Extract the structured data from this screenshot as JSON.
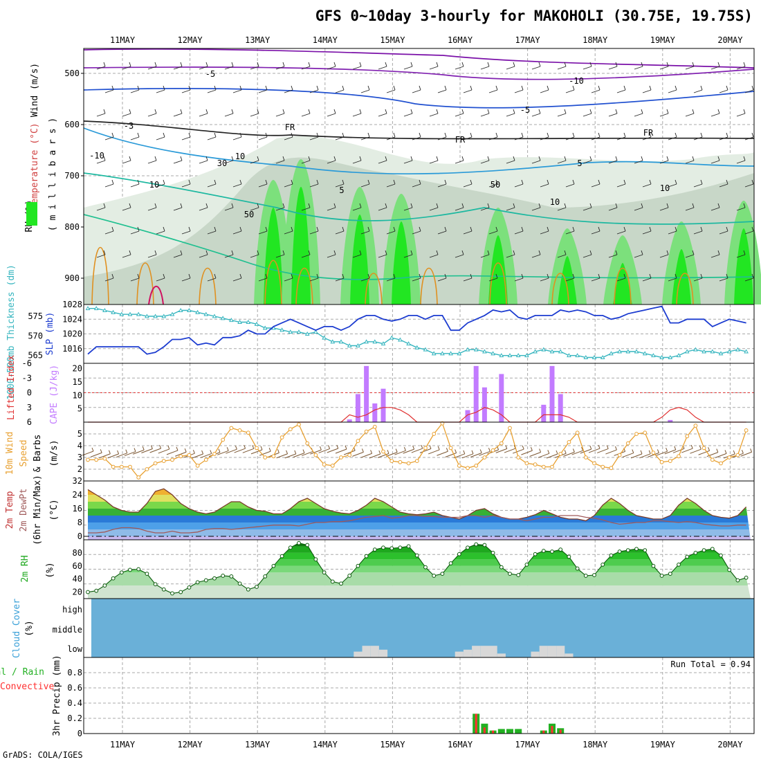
{
  "title": "GFS 0~10day 3-hourly for MAKOHOLI (30.75E, 19.75S)",
  "footer": "GrADS: COLA/IGES",
  "colors": {
    "grid": "#a8a8a8",
    "rh_light": "#e3ede3",
    "rh_mid": "#c4d4c4",
    "rh_green1": "#7ce07c",
    "rh_green2": "#22e622",
    "rh_green3": "#11b011",
    "slp": "#1c3cd0",
    "thickness": "#35b5bf",
    "cape": "#c27bff",
    "lifted_index": "#e03030",
    "wind_speed": "#e8a030",
    "barb": "#7a5530",
    "temp_fill_top": "#f0b030",
    "dewpoint": "#a05a5a",
    "rh2m": "#1ea81e",
    "cloud": "#6ab0d8",
    "cloud_low": "#d8d8d8",
    "precip_total": "#22b022",
    "precip_conv": "#ff3030"
  },
  "x_axis": {
    "labels": [
      "11MAY",
      "12MAY",
      "13MAY",
      "14MAY",
      "15MAY",
      "16MAY",
      "17MAY",
      "18MAY",
      "19MAY",
      "20MAY"
    ]
  },
  "panels": {
    "upper": {
      "ylabel_wind": "Wind (m/s)",
      "ylabel_temp": "Temperature (°C)",
      "ylabel_rh": "RH (%)",
      "ylabel_units": "( m i l l i b a r s )",
      "y_ticks": [
        "500",
        "600",
        "700",
        "800",
        "900"
      ],
      "contour_labels": [
        "-5",
        "-10",
        "-5",
        "-3",
        "FR",
        "FR",
        "FR",
        "5",
        "5",
        "10",
        "-10",
        "30",
        "10",
        "50",
        "50",
        "10",
        "10"
      ]
    },
    "slp": {
      "ylabel_thk": "1000-500mb Thickness (dm)",
      "ylabel_slp": "SLP (mb)",
      "thk_ticks": [
        "575",
        "570",
        "565"
      ],
      "slp_ticks": [
        "1028",
        "1024",
        "1020",
        "1016"
      ]
    },
    "cape": {
      "ylabel_li": "Lifted Index",
      "ylabel_cape": "CAPE (J/kg)",
      "li_ticks": [
        "-6",
        "-3",
        "0",
        "3",
        "6"
      ],
      "cape_ticks": [
        "20",
        "15",
        "10",
        "5"
      ]
    },
    "wind10": {
      "ylabel_a": "10m Wind",
      "ylabel_b": "Speed",
      "ylabel_c": "& Barbs",
      "ylabel_units": "(m/s)",
      "ticks": [
        "5",
        "4",
        "3",
        "2"
      ]
    },
    "temp2m": {
      "ylabel_a": "2m Temp",
      "ylabel_b": "2m DewPt",
      "ylabel_c": "(6hr Min/Max)",
      "ylabel_units": "(°C)",
      "ticks": [
        "32",
        "24",
        "16",
        "8",
        "0"
      ]
    },
    "rh2m": {
      "ylabel": "2m RH",
      "ylabel_units": "(%)",
      "ticks": [
        "80",
        "60",
        "40",
        "20"
      ]
    },
    "cloud": {
      "ylabel": "Cloud Cover",
      "ylabel_units": "(%)",
      "levels": [
        "high",
        "middle",
        "low"
      ]
    },
    "precip": {
      "ylabel_a": "Total / Rain",
      "ylabel_b": "Convective",
      "ylabel_c": "3hr Precip (mm)",
      "ticks": [
        "0.8",
        "0.6",
        "0.4",
        "0.2",
        "0"
      ],
      "run_total": "Run Total = 0.94"
    }
  },
  "chart_data": {
    "type": "line",
    "time_start": "10MAY 12Z",
    "time_step_hours": 3,
    "slp_mb": {
      "ylim": [
        1012,
        1028
      ],
      "values": [
        1014.5,
        1016.5,
        1016.5,
        1016.5,
        1016.5,
        1016.5,
        1016.5,
        1014.5,
        1015,
        1016.5,
        1018.5,
        1018.5,
        1019,
        1017,
        1017.5,
        1017,
        1019,
        1019,
        1019.5,
        1021,
        1020,
        1020,
        1022,
        1023,
        1024,
        1023,
        1022,
        1021,
        1022,
        1022,
        1021,
        1022,
        1024,
        1025,
        1025,
        1024,
        1023.5,
        1024,
        1025,
        1025,
        1024,
        1025,
        1025,
        1021,
        1021,
        1023,
        1024,
        1025,
        1026.5,
        1026,
        1026.5,
        1024.5,
        1024,
        1025,
        1025,
        1025,
        1026.5,
        1026,
        1026.5,
        1026,
        1025,
        1025,
        1024,
        1024.5,
        1025.5,
        1026,
        1026.5,
        1027,
        1027.5,
        1023,
        1023,
        1024,
        1024,
        1024,
        1022,
        1023,
        1024,
        1023.5,
        1023,
        1022.5,
        1022,
        1019.5,
        1020.5,
        1022,
        1024,
        1025,
        1024,
        1024.5,
        1024,
        1021,
        1019,
        1019,
        1021,
        1023,
        1025,
        1025,
        1025,
        1025.5,
        1026
      ]
    },
    "thickness_dm": {
      "ylim": [
        563,
        578
      ],
      "values": [
        577,
        577,
        576.5,
        576,
        575.5,
        575.5,
        575.5,
        575,
        575,
        575,
        575.5,
        576.5,
        576.5,
        576,
        575.5,
        575,
        574.5,
        574,
        573.5,
        573.5,
        573,
        572,
        572,
        571.5,
        571,
        571,
        570.5,
        571,
        569.5,
        568.5,
        568.5,
        567.5,
        567.5,
        568.5,
        568.5,
        568,
        569.5,
        569,
        568,
        567,
        566.5,
        565.5,
        565.5,
        565.5,
        565.5,
        566.5,
        566.5,
        566,
        565.5,
        565,
        565,
        565,
        565,
        566,
        566.5,
        566,
        566,
        565,
        565,
        564.5,
        564.5,
        564.5,
        565.5,
        566,
        566,
        566,
        565.5,
        565,
        564.5,
        564.5,
        565,
        566,
        566.5,
        566,
        566,
        565.5,
        566,
        566.5,
        566,
        566,
        566.5,
        566.5,
        566,
        565,
        565,
        565.5,
        566,
        566.5,
        567,
        566.5,
        566,
        565.5,
        565.5,
        566,
        567.5,
        567,
        566.5,
        566,
        565,
        565,
        565,
        565
      ]
    },
    "cape_jkg": {
      "ylim": [
        0,
        22
      ],
      "values": [
        0,
        0,
        0,
        0,
        0,
        0,
        0,
        0,
        0,
        0,
        0,
        0,
        0,
        0,
        0,
        0,
        0,
        0,
        0,
        0,
        0,
        0,
        0,
        0,
        0,
        0,
        0,
        0,
        0,
        0,
        0,
        1,
        10.5,
        21,
        7,
        12.5,
        0,
        0,
        0,
        0,
        0,
        0,
        0,
        0,
        0,
        4.5,
        21,
        13,
        0,
        18,
        0,
        0,
        0,
        0,
        6.5,
        21,
        10.5,
        0,
        0,
        0,
        0,
        0,
        0,
        0,
        0,
        0,
        0,
        0,
        0,
        0.8,
        0,
        0,
        0,
        0,
        0,
        0,
        0,
        0,
        0,
        0,
        0,
        0,
        0,
        0,
        0,
        0,
        0,
        0,
        0,
        0,
        0,
        0,
        0,
        0,
        0,
        0,
        0,
        0,
        0,
        0,
        8
      ]
    },
    "lifted_index": {
      "ylim": [
        6,
        -6
      ],
      "values": [
        6,
        6,
        6,
        6,
        6,
        6,
        6,
        6,
        6,
        6,
        6,
        6,
        6,
        6,
        6,
        6,
        6,
        6,
        6,
        6,
        6,
        6,
        6,
        6,
        6,
        6,
        6,
        6,
        6,
        6,
        6,
        4.5,
        5,
        4.5,
        3.5,
        3,
        3,
        3.5,
        4.5,
        6,
        6,
        6,
        6,
        6,
        6,
        4.5,
        4,
        3,
        3.5,
        4.5,
        6,
        6,
        6,
        6,
        4.5,
        4.5,
        4.5,
        5,
        6,
        6,
        6,
        6,
        6,
        6,
        6,
        6,
        6,
        6,
        5,
        3.5,
        3,
        3.5,
        5,
        6,
        6,
        6,
        6,
        6,
        6,
        6,
        6,
        6,
        6,
        6,
        5,
        4.5,
        4.5,
        5,
        6,
        6,
        6,
        6,
        6,
        6,
        6,
        6,
        6,
        6,
        6,
        6,
        6,
        6,
        6,
        6,
        6,
        6,
        6,
        6,
        6,
        4.5,
        4.5,
        4.5,
        6,
        6,
        6,
        6,
        6,
        6,
        6,
        6,
        6,
        6,
        6,
        6,
        6,
        6,
        6,
        4
      ]
    },
    "wind_speed_10m": {
      "ylim": [
        1,
        6
      ],
      "values": [
        2.8,
        2.8,
        2.9,
        2.2,
        2.2,
        2.2,
        1.3,
        2,
        2.5,
        2.7,
        2.8,
        3.1,
        3.2,
        2.3,
        2.8,
        3.3,
        4.5,
        5.5,
        5.3,
        5.1,
        3.8,
        3,
        3.1,
        4.7,
        5.4,
        5.8,
        4.2,
        3.2,
        2.4,
        2.3,
        3,
        3.2,
        4.4,
        5.2,
        5.6,
        3.5,
        2.7,
        2.6,
        2.5,
        2.7,
        3.8,
        5,
        5.9,
        3.8,
        2.3,
        2.1,
        2.3,
        3,
        3.6,
        4.2,
        5.5,
        3,
        2.5,
        2.4,
        2.2,
        2.2,
        3.3,
        4.3,
        5.1,
        3,
        2.5,
        2.2,
        2.1,
        3.2,
        4.2,
        5,
        5.1,
        3.4,
        2.6,
        2.7,
        3.1,
        4.8,
        5.7,
        3.8,
        2.8,
        2.5,
        3,
        3.2,
        5.3,
        5.6,
        4.1,
        3.6,
        3,
        3.2,
        4.2,
        5.6,
        3.2,
        3.3,
        3.3,
        3,
        2.9,
        3.5,
        4.9
      ]
    },
    "temp_2m_c": {
      "ylim": [
        -2,
        32
      ],
      "values": [
        27,
        24,
        21,
        17,
        15,
        14,
        14,
        19,
        26,
        27.5,
        24,
        19,
        16,
        14,
        13,
        14,
        17,
        20,
        20,
        17,
        15,
        14.5,
        13,
        13,
        16,
        20,
        22,
        19,
        16,
        14.5,
        13.5,
        13,
        15,
        18,
        22,
        20,
        17,
        14,
        13,
        12.5,
        13,
        14,
        12,
        11,
        10,
        12,
        15,
        16,
        13,
        11,
        10,
        10,
        11,
        12.5,
        15,
        13,
        11,
        10,
        10,
        9,
        12,
        18,
        22,
        19,
        15,
        12,
        11,
        10,
        10,
        12,
        18,
        22,
        19,
        15,
        12,
        11,
        10.5,
        12,
        17,
        21,
        18,
        14,
        12,
        11,
        10,
        13,
        18,
        21,
        18,
        13,
        11,
        10,
        10.5,
        13,
        17,
        21,
        18,
        14,
        12,
        11,
        10.5,
        10,
        12
      ]
    },
    "dewpoint_2m_c": {
      "ylim": [
        -2,
        32
      ],
      "values": [
        2,
        2,
        2.5,
        4,
        5,
        5,
        4.5,
        3,
        2,
        2,
        3,
        2,
        2,
        2.5,
        4,
        4.5,
        4.5,
        4,
        4.5,
        5,
        5.5,
        6,
        6.5,
        6.5,
        6.5,
        6,
        7,
        8,
        8,
        8.5,
        8.5,
        9,
        10,
        11,
        11.5,
        12,
        10.5,
        11,
        12,
        12,
        11.5,
        11.5,
        11,
        11,
        11,
        12,
        12,
        11,
        12,
        11,
        10,
        10,
        9,
        10,
        11,
        11,
        12,
        12,
        12,
        11,
        10.5,
        9.5,
        8,
        7,
        7.5,
        8,
        8,
        9,
        9,
        8.5,
        8,
        8.5,
        8,
        7,
        6.5,
        6,
        6,
        6.5,
        6.5,
        6,
        6.5,
        8,
        6,
        2.5,
        0,
        1,
        2.5,
        4,
        6,
        6.5,
        7.5,
        8.5,
        9,
        9,
        9.5,
        10,
        10.5,
        10.5,
        11,
        11.5,
        11,
        10,
        11.5
      ]
    },
    "rh_2m": {
      "ylim": [
        10,
        100
      ],
      "values": [
        20,
        22,
        30,
        41,
        50,
        54,
        55,
        48,
        32,
        24,
        18,
        20,
        27,
        35,
        38,
        41,
        45,
        44,
        33,
        24,
        28,
        44,
        60,
        75,
        88,
        95,
        92,
        70,
        50,
        36,
        33,
        45,
        60,
        75,
        85,
        88,
        87,
        88,
        90,
        76,
        58,
        45,
        48,
        64,
        78,
        88,
        93,
        92,
        80,
        58,
        48,
        46,
        62,
        78,
        83,
        82,
        85,
        74,
        56,
        45,
        46,
        62,
        76,
        82,
        84,
        86,
        84,
        60,
        45,
        48,
        62,
        74,
        80,
        84,
        86,
        76,
        54,
        38,
        42,
        60,
        75,
        84,
        88,
        80,
        55,
        30,
        20,
        18,
        28,
        45,
        60,
        70,
        76,
        78,
        84,
        88,
        72,
        46,
        40,
        56,
        70,
        80,
        88,
        84
      ]
    },
    "cloud_cover_low": {
      "ylim": [
        0,
        100
      ],
      "values": [
        0,
        0,
        0,
        0,
        0,
        0,
        0,
        0,
        0,
        0,
        0,
        0,
        0,
        0,
        0,
        0,
        0,
        0,
        0,
        0,
        0,
        0,
        0,
        0,
        0,
        0,
        0,
        0,
        0,
        0,
        0,
        0,
        30,
        60,
        60,
        40,
        0,
        0,
        0,
        0,
        0,
        0,
        0,
        0,
        30,
        40,
        60,
        60,
        60,
        20,
        0,
        0,
        0,
        30,
        60,
        60,
        60,
        20,
        0,
        0,
        0,
        0,
        0,
        0,
        0,
        0,
        0,
        0,
        0,
        0,
        0,
        0,
        0,
        0,
        0,
        0,
        0,
        0,
        0,
        0,
        0,
        0,
        0,
        0,
        0,
        0,
        0,
        0,
        0,
        0,
        0,
        0,
        0,
        0,
        0,
        0,
        0,
        0,
        0,
        0,
        0,
        0,
        0,
        0,
        0,
        0,
        0,
        0,
        0,
        0,
        0,
        0,
        0,
        0,
        0,
        0,
        0,
        60
      ]
    },
    "precip_total_mm": {
      "ylim": [
        0,
        1
      ],
      "values": [
        0,
        0,
        0,
        0,
        0,
        0,
        0,
        0,
        0,
        0,
        0,
        0,
        0,
        0,
        0,
        0,
        0,
        0,
        0,
        0,
        0,
        0,
        0,
        0,
        0,
        0,
        0,
        0,
        0,
        0,
        0,
        0,
        0,
        0,
        0,
        0,
        0,
        0,
        0,
        0,
        0,
        0,
        0,
        0,
        0,
        0,
        0.26,
        0.13,
        0.04,
        0.06,
        0.06,
        0.06,
        0,
        0,
        0.04,
        0.13,
        0.07,
        0,
        0,
        0,
        0,
        0,
        0,
        0,
        0,
        0,
        0,
        0,
        0,
        0,
        0,
        0,
        0,
        0,
        0,
        0,
        0,
        0,
        0,
        0,
        0,
        0,
        0,
        0,
        0,
        0,
        0,
        0,
        0,
        0,
        0,
        0,
        0,
        0,
        0,
        0,
        0,
        0,
        0,
        0,
        0,
        0,
        0,
        0,
        0,
        0,
        0,
        0,
        0,
        0,
        0,
        0,
        0,
        0,
        0,
        0.06
      ]
    },
    "precip_convective_mm": {
      "ylim": [
        0,
        1
      ],
      "values": [
        0,
        0,
        0,
        0,
        0,
        0,
        0,
        0,
        0,
        0,
        0,
        0,
        0,
        0,
        0,
        0,
        0,
        0,
        0,
        0,
        0,
        0,
        0,
        0,
        0,
        0,
        0,
        0,
        0,
        0,
        0,
        0,
        0,
        0,
        0,
        0,
        0,
        0,
        0,
        0,
        0,
        0,
        0,
        0,
        0,
        0,
        0.26,
        0.08,
        0.04,
        0,
        0,
        0,
        0,
        0,
        0.04,
        0.1,
        0.05,
        0,
        0,
        0,
        0,
        0,
        0,
        0,
        0,
        0,
        0,
        0,
        0,
        0,
        0,
        0,
        0,
        0,
        0,
        0,
        0,
        0,
        0,
        0,
        0,
        0,
        0,
        0,
        0,
        0,
        0,
        0,
        0,
        0,
        0,
        0,
        0,
        0,
        0,
        0,
        0,
        0,
        0,
        0,
        0,
        0,
        0,
        0,
        0,
        0,
        0,
        0,
        0,
        0,
        0,
        0,
        0,
        0.06
      ]
    }
  }
}
